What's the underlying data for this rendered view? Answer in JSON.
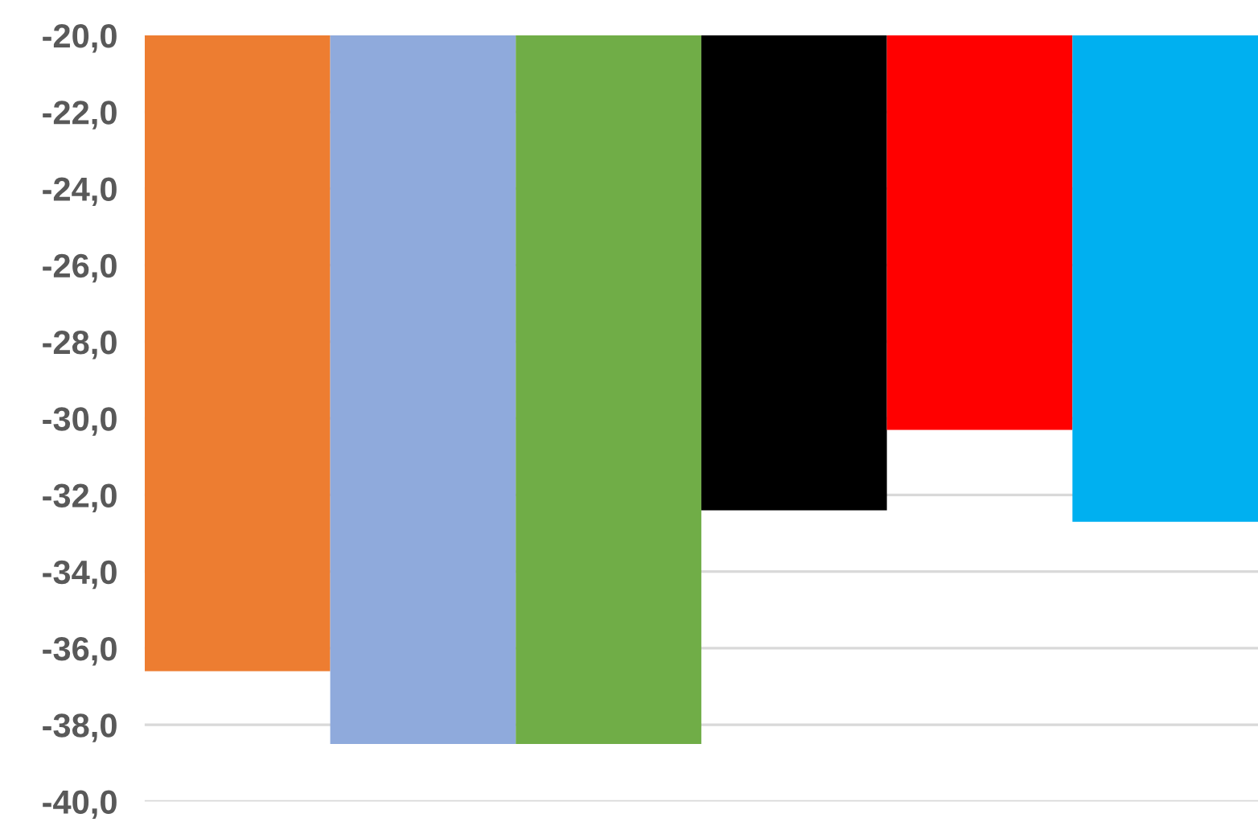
{
  "chart_data": {
    "type": "bar",
    "categories": [
      null,
      null,
      null,
      null,
      null,
      null
    ],
    "values": [
      -36.6,
      -38.5,
      -38.5,
      -32.4,
      -30.3,
      -32.7
    ],
    "colors": [
      "#ed7d31",
      "#8faadc",
      "#70ad47",
      "#000000",
      "#ff0000",
      "#00b0f0"
    ],
    "ylim": [
      -40,
      -20
    ],
    "yticks": [
      {
        "value": -40,
        "label": "-40,0"
      },
      {
        "value": -38,
        "label": "-38,0"
      },
      {
        "value": -36,
        "label": "-36,0"
      },
      {
        "value": -34,
        "label": "-34,0"
      },
      {
        "value": -32,
        "label": "-32,0"
      },
      {
        "value": -30,
        "label": "-30,0"
      },
      {
        "value": -28,
        "label": "-28,0"
      },
      {
        "value": -26,
        "label": "-26,0"
      },
      {
        "value": -24,
        "label": "-24,0"
      },
      {
        "value": -22,
        "label": "-22,0"
      },
      {
        "value": -20,
        "label": "-20,0"
      }
    ],
    "grid": "y"
  }
}
